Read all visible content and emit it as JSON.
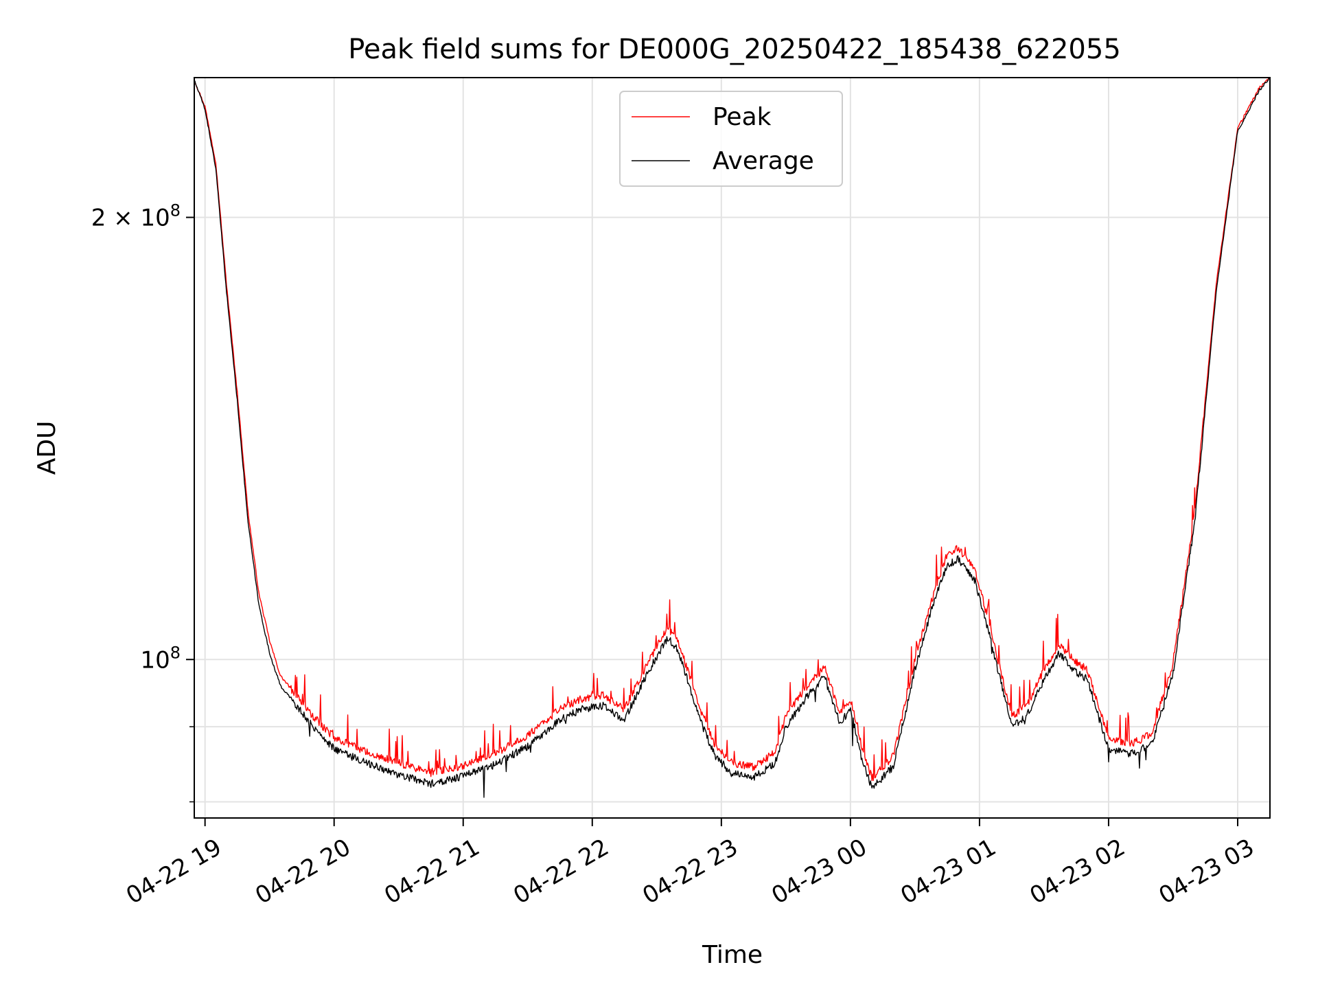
{
  "chart_data": {
    "type": "line",
    "title": "Peak field sums for DE000G_20250422_185438_622055",
    "xlabel": "Time",
    "ylabel": "ADU",
    "y_scale": "log",
    "x_range": [
      "2025-04-22 18:55",
      "2025-04-23 03:15"
    ],
    "y_range": [
      78000000,
      249000000
    ],
    "x_ticks": [
      "04-22 19",
      "04-22 20",
      "04-22 21",
      "04-22 22",
      "04-22 23",
      "04-23 00",
      "04-23 01",
      "04-23 02",
      "04-23 03"
    ],
    "y_ticks": [
      {
        "value": 200000000,
        "base": "2 × 10",
        "exp": "8"
      },
      {
        "value": 100000000,
        "base": "10",
        "exp": "8"
      }
    ],
    "grid": true,
    "legend_position": "upper center",
    "series": [
      {
        "name": "Peak",
        "color": "#ff0000",
        "points": [
          [
            "2025-04-22 18:55",
            248000000
          ],
          [
            "2025-04-22 19:00",
            238000000
          ],
          [
            "2025-04-22 19:05",
            218000000
          ],
          [
            "2025-04-22 19:10",
            180000000
          ],
          [
            "2025-04-22 19:15",
            152000000
          ],
          [
            "2025-04-22 19:20",
            126000000
          ],
          [
            "2025-04-22 19:25",
            111000000
          ],
          [
            "2025-04-22 19:30",
            103000000
          ],
          [
            "2025-04-22 19:35",
            97500000
          ],
          [
            "2025-04-22 19:40",
            95500000
          ],
          [
            "2025-04-22 19:50",
            91500000
          ],
          [
            "2025-04-22 20:00",
            88500000
          ],
          [
            "2025-04-22 20:15",
            86500000
          ],
          [
            "2025-04-22 20:30",
            85000000
          ],
          [
            "2025-04-22 20:45",
            83700000
          ],
          [
            "2025-04-22 21:00",
            84700000
          ],
          [
            "2025-04-22 21:15",
            86300000
          ],
          [
            "2025-04-22 21:30",
            88800000
          ],
          [
            "2025-04-22 21:45",
            92500000
          ],
          [
            "2025-04-22 21:55",
            94000000
          ],
          [
            "2025-04-22 22:05",
            94500000
          ],
          [
            "2025-04-22 22:15",
            92500000
          ],
          [
            "2025-04-22 22:25",
            99000000
          ],
          [
            "2025-04-22 22:35",
            105000000
          ],
          [
            "2025-04-22 22:40",
            103000000
          ],
          [
            "2025-04-22 22:50",
            92500000
          ],
          [
            "2025-04-22 22:57",
            87500000
          ],
          [
            "2025-04-22 23:05",
            85000000
          ],
          [
            "2025-04-22 23:15",
            84500000
          ],
          [
            "2025-04-22 23:25",
            86500000
          ],
          [
            "2025-04-22 23:30",
            91500000
          ],
          [
            "2025-04-22 23:40",
            96000000
          ],
          [
            "2025-04-22 23:48",
            98800000
          ],
          [
            "2025-04-22 23:55",
            92000000
          ],
          [
            "2025-04-23 00:00",
            94000000
          ],
          [
            "2025-04-23 00:05",
            87500000
          ],
          [
            "2025-04-23 00:10",
            83000000
          ],
          [
            "2025-04-23 00:20",
            86000000
          ],
          [
            "2025-04-23 00:30",
            100000000
          ],
          [
            "2025-04-23 00:38",
            110000000
          ],
          [
            "2025-04-23 00:45",
            118000000
          ],
          [
            "2025-04-23 00:50",
            119000000
          ],
          [
            "2025-04-23 00:58",
            115000000
          ],
          [
            "2025-04-23 01:05",
            105000000
          ],
          [
            "2025-04-23 01:15",
            91500000
          ],
          [
            "2025-04-23 01:22",
            93000000
          ],
          [
            "2025-04-23 01:30",
            98500000
          ],
          [
            "2025-04-23 01:37",
            102500000
          ],
          [
            "2025-04-23 01:45",
            99500000
          ],
          [
            "2025-04-23 01:50",
            98500000
          ],
          [
            "2025-04-23 02:00",
            88500000
          ],
          [
            "2025-04-23 02:10",
            87500000
          ],
          [
            "2025-04-23 02:20",
            89000000
          ],
          [
            "2025-04-23 02:30",
            99500000
          ],
          [
            "2025-04-23 02:40",
            126000000
          ],
          [
            "2025-04-23 02:50",
            180000000
          ],
          [
            "2025-04-23 03:00",
            230000000
          ],
          [
            "2025-04-23 03:10",
            245000000
          ],
          [
            "2025-04-23 03:15",
            249000000
          ]
        ]
      },
      {
        "name": "Average",
        "color": "#000000",
        "points": [
          [
            "2025-04-22 18:55",
            248000000
          ],
          [
            "2025-04-22 19:00",
            237000000
          ],
          [
            "2025-04-22 19:05",
            216000000
          ],
          [
            "2025-04-22 19:10",
            178000000
          ],
          [
            "2025-04-22 19:15",
            150000000
          ],
          [
            "2025-04-22 19:20",
            124000000
          ],
          [
            "2025-04-22 19:25",
            109000000
          ],
          [
            "2025-04-22 19:30",
            101000000
          ],
          [
            "2025-04-22 19:35",
            96000000
          ],
          [
            "2025-04-22 19:40",
            94000000
          ],
          [
            "2025-04-22 19:50",
            90000000
          ],
          [
            "2025-04-22 20:00",
            87000000
          ],
          [
            "2025-04-22 20:15",
            85000000
          ],
          [
            "2025-04-22 20:30",
            83500000
          ],
          [
            "2025-04-22 20:45",
            82300000
          ],
          [
            "2025-04-22 21:00",
            83300000
          ],
          [
            "2025-04-22 21:15",
            84800000
          ],
          [
            "2025-04-22 21:30",
            87300000
          ],
          [
            "2025-04-22 21:45",
            91000000
          ],
          [
            "2025-04-22 21:55",
            92500000
          ],
          [
            "2025-04-22 22:05",
            93000000
          ],
          [
            "2025-04-22 22:15",
            91000000
          ],
          [
            "2025-04-22 22:25",
            97500000
          ],
          [
            "2025-04-22 22:35",
            103500000
          ],
          [
            "2025-04-22 22:40",
            101500000
          ],
          [
            "2025-04-22 22:50",
            91000000
          ],
          [
            "2025-04-22 22:57",
            86000000
          ],
          [
            "2025-04-22 23:05",
            83600000
          ],
          [
            "2025-04-22 23:15",
            83100000
          ],
          [
            "2025-04-22 23:25",
            85000000
          ],
          [
            "2025-04-22 23:30",
            90000000
          ],
          [
            "2025-04-22 23:40",
            94500000
          ],
          [
            "2025-04-22 23:48",
            97300000
          ],
          [
            "2025-04-22 23:55",
            90500000
          ],
          [
            "2025-04-23 00:00",
            92500000
          ],
          [
            "2025-04-23 00:05",
            86000000
          ],
          [
            "2025-04-23 00:10",
            81700000
          ],
          [
            "2025-04-23 00:20",
            84600000
          ],
          [
            "2025-04-23 00:30",
            98500000
          ],
          [
            "2025-04-23 00:38",
            108500000
          ],
          [
            "2025-04-23 00:45",
            116000000
          ],
          [
            "2025-04-23 00:50",
            117000000
          ],
          [
            "2025-04-23 00:58",
            113000000
          ],
          [
            "2025-04-23 01:05",
            103500000
          ],
          [
            "2025-04-23 01:15",
            90000000
          ],
          [
            "2025-04-23 01:22",
            91500000
          ],
          [
            "2025-04-23 01:30",
            97000000
          ],
          [
            "2025-04-23 01:37",
            101000000
          ],
          [
            "2025-04-23 01:45",
            98000000
          ],
          [
            "2025-04-23 01:50",
            97000000
          ],
          [
            "2025-04-23 02:00",
            87000000
          ],
          [
            "2025-04-23 02:10",
            86200000
          ],
          [
            "2025-04-23 02:20",
            87500000
          ],
          [
            "2025-04-23 02:30",
            98000000
          ],
          [
            "2025-04-23 02:40",
            124000000
          ],
          [
            "2025-04-23 02:50",
            178000000
          ],
          [
            "2025-04-23 03:00",
            229000000
          ],
          [
            "2025-04-23 03:10",
            244000000
          ],
          [
            "2025-04-23 03:15",
            249000000
          ]
        ]
      }
    ]
  }
}
